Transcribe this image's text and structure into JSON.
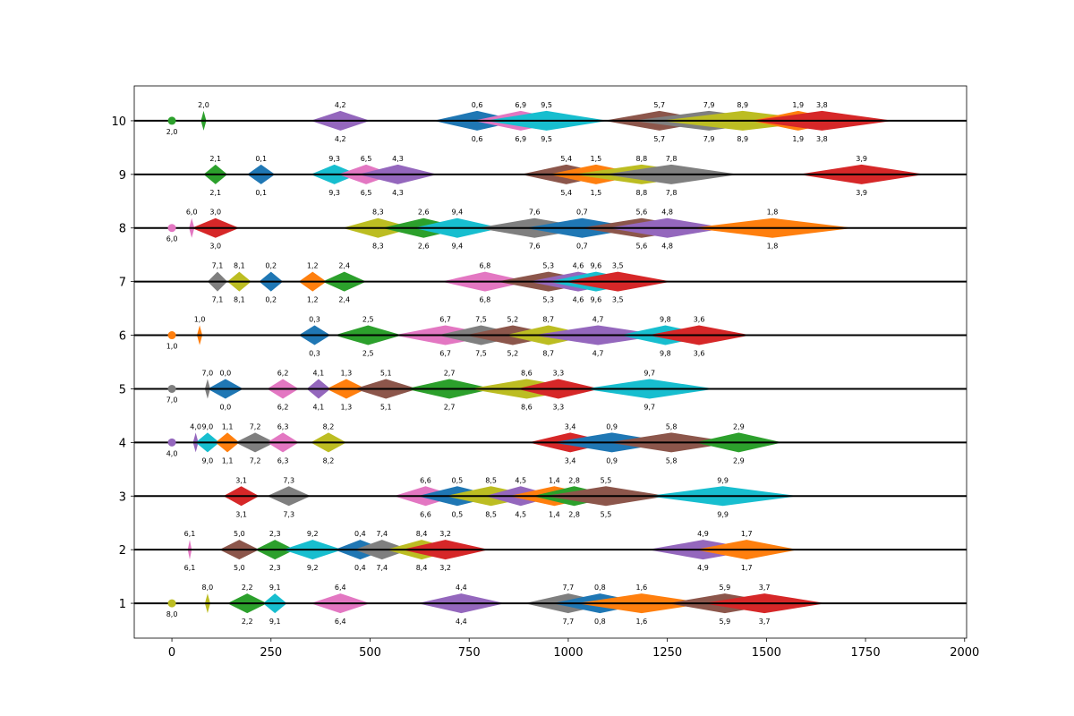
{
  "chart_data": {
    "type": "scatter",
    "title": "",
    "xlabel": "",
    "ylabel": "",
    "xlim": [
      -95,
      2005
    ],
    "ylim": [
      0.35,
      10.65
    ],
    "grid": false,
    "x_ticks": [
      0,
      250,
      500,
      750,
      1000,
      1250,
      1500,
      1750,
      2000
    ],
    "y_ticks": [
      1,
      2,
      3,
      4,
      5,
      6,
      7,
      8,
      9,
      10
    ],
    "x_tick_labels": [
      "0",
      "250",
      "500",
      "750",
      "1000",
      "1250",
      "1500",
      "1750",
      "2000"
    ],
    "y_tick_labels": [
      "1",
      "2",
      "3",
      "4",
      "5",
      "6",
      "7",
      "8",
      "9",
      "10"
    ],
    "palette": [
      "#1f77b4",
      "#ff7f0e",
      "#2ca02c",
      "#d62728",
      "#9467bd",
      "#8c564b",
      "#e377c2",
      "#7f7f7f",
      "#bcbd22",
      "#17becf"
    ],
    "lines": [
      {
        "y": 10,
        "origin": {
          "x": 0,
          "label": "2,0",
          "color": "#2ca02c"
        },
        "tasks": [
          {
            "label": "2,0",
            "start": 80,
            "end": 80,
            "color": "#2ca02c"
          },
          {
            "label": "4,2",
            "start": 350,
            "end": 500,
            "color": "#9467bd"
          },
          {
            "label": "0,6",
            "start": 660,
            "end": 880,
            "color": "#1f77b4"
          },
          {
            "label": "6,9",
            "start": 760,
            "end": 1000,
            "color": "#e377c2"
          },
          {
            "label": "9,5",
            "start": 790,
            "end": 1100,
            "color": "#17becf"
          },
          {
            "label": "5,7",
            "start": 1090,
            "end": 1370,
            "color": "#8c564b"
          },
          {
            "label": "7,9",
            "start": 1160,
            "end": 1550,
            "color": "#7f7f7f"
          },
          {
            "label": "8,9",
            "start": 1230,
            "end": 1650,
            "color": "#bcbd22"
          },
          {
            "label": "1,9",
            "start": 1460,
            "end": 1700,
            "color": "#ff7f0e"
          },
          {
            "label": "3,8",
            "start": 1460,
            "end": 1820,
            "color": "#d62728"
          }
        ]
      },
      {
        "y": 9,
        "tasks": [
          {
            "label": "2,1",
            "start": 80,
            "end": 140,
            "color": "#2ca02c"
          },
          {
            "label": "0,1",
            "start": 190,
            "end": 260,
            "color": "#1f77b4"
          },
          {
            "label": "9,3",
            "start": 350,
            "end": 470,
            "color": "#17becf"
          },
          {
            "label": "6,5",
            "start": 420,
            "end": 560,
            "color": "#e377c2"
          },
          {
            "label": "4,3",
            "start": 470,
            "end": 670,
            "color": "#9467bd"
          },
          {
            "label": "5,4",
            "start": 880,
            "end": 1110,
            "color": "#8c564b"
          },
          {
            "label": "1,5",
            "start": 950,
            "end": 1190,
            "color": "#ff7f0e"
          },
          {
            "label": "8,8",
            "start": 1010,
            "end": 1360,
            "color": "#bcbd22"
          },
          {
            "label": "7,8",
            "start": 1090,
            "end": 1430,
            "color": "#7f7f7f"
          },
          {
            "label": "3,9",
            "start": 1580,
            "end": 1900,
            "color": "#d62728"
          }
        ]
      },
      {
        "y": 8,
        "origin": {
          "x": 0,
          "label": "6,0",
          "color": "#e377c2"
        },
        "tasks": [
          {
            "label": "6,0",
            "start": 50,
            "end": 50,
            "color": "#e377c2"
          },
          {
            "label": "3,0",
            "start": 50,
            "end": 170,
            "color": "#d62728"
          },
          {
            "label": "8,3",
            "start": 430,
            "end": 610,
            "color": "#bcbd22"
          },
          {
            "label": "2,6",
            "start": 530,
            "end": 740,
            "color": "#2ca02c"
          },
          {
            "label": "9,4",
            "start": 610,
            "end": 830,
            "color": "#17becf"
          },
          {
            "label": "7,6",
            "start": 770,
            "end": 1060,
            "color": "#7f7f7f"
          },
          {
            "label": "0,7",
            "start": 890,
            "end": 1180,
            "color": "#1f77b4"
          },
          {
            "label": "5,6",
            "start": 1030,
            "end": 1340,
            "color": "#8c564b"
          },
          {
            "label": "4,8",
            "start": 1100,
            "end": 1400,
            "color": "#9467bd"
          },
          {
            "label": "1,8",
            "start": 1310,
            "end": 1720,
            "color": "#ff7f0e"
          }
        ]
      },
      {
        "y": 7,
        "tasks": [
          {
            "label": "7,1",
            "start": 90,
            "end": 140,
            "color": "#7f7f7f"
          },
          {
            "label": "8,1",
            "start": 140,
            "end": 200,
            "color": "#bcbd22"
          },
          {
            "label": "0,2",
            "start": 220,
            "end": 280,
            "color": "#1f77b4"
          },
          {
            "label": "1,2",
            "start": 320,
            "end": 390,
            "color": "#ff7f0e"
          },
          {
            "label": "2,4",
            "start": 380,
            "end": 490,
            "color": "#2ca02c"
          },
          {
            "label": "6,8",
            "start": 680,
            "end": 900,
            "color": "#e377c2"
          },
          {
            "label": "5,3",
            "start": 820,
            "end": 1080,
            "color": "#8c564b"
          },
          {
            "label": "4,6",
            "start": 900,
            "end": 1150,
            "color": "#9467bd"
          },
          {
            "label": "9,6",
            "start": 950,
            "end": 1190,
            "color": "#17becf"
          },
          {
            "label": "3,5",
            "start": 990,
            "end": 1260,
            "color": "#d62728"
          }
        ]
      },
      {
        "y": 6,
        "origin": {
          "x": 0,
          "label": "1,0",
          "color": "#ff7f0e"
        },
        "tasks": [
          {
            "label": "1,0",
            "start": 70,
            "end": 70,
            "color": "#ff7f0e"
          },
          {
            "label": "0,3",
            "start": 320,
            "end": 400,
            "color": "#1f77b4"
          },
          {
            "label": "2,5",
            "start": 410,
            "end": 580,
            "color": "#2ca02c"
          },
          {
            "label": "6,7",
            "start": 560,
            "end": 820,
            "color": "#e377c2"
          },
          {
            "label": "7,5",
            "start": 670,
            "end": 890,
            "color": "#7f7f7f"
          },
          {
            "label": "5,2",
            "start": 740,
            "end": 980,
            "color": "#8c564b"
          },
          {
            "label": "8,7",
            "start": 840,
            "end": 1060,
            "color": "#bcbd22"
          },
          {
            "label": "4,7",
            "start": 910,
            "end": 1240,
            "color": "#9467bd"
          },
          {
            "label": "9,8",
            "start": 1130,
            "end": 1360,
            "color": "#17becf"
          },
          {
            "label": "3,6",
            "start": 1200,
            "end": 1460,
            "color": "#d62728"
          }
        ]
      },
      {
        "y": 5,
        "origin": {
          "x": 0,
          "label": "7,0",
          "color": "#7f7f7f"
        },
        "tasks": [
          {
            "label": "7,0",
            "start": 90,
            "end": 90,
            "color": "#7f7f7f"
          },
          {
            "label": "0,0",
            "start": 90,
            "end": 180,
            "color": "#1f77b4"
          },
          {
            "label": "6,2",
            "start": 240,
            "end": 320,
            "color": "#e377c2"
          },
          {
            "label": "4,1",
            "start": 340,
            "end": 400,
            "color": "#9467bd"
          },
          {
            "label": "1,3",
            "start": 390,
            "end": 490,
            "color": "#ff7f0e"
          },
          {
            "label": "5,1",
            "start": 460,
            "end": 620,
            "color": "#8c564b"
          },
          {
            "label": "2,7",
            "start": 590,
            "end": 810,
            "color": "#2ca02c"
          },
          {
            "label": "8,6",
            "start": 750,
            "end": 1040,
            "color": "#bcbd22"
          },
          {
            "label": "3,3",
            "start": 870,
            "end": 1080,
            "color": "#d62728"
          },
          {
            "label": "9,7",
            "start": 1040,
            "end": 1370,
            "color": "#17becf"
          }
        ]
      },
      {
        "y": 4,
        "origin": {
          "x": 0,
          "label": "4,0",
          "color": "#9467bd"
        },
        "tasks": [
          {
            "label": "4,0",
            "start": 60,
            "end": 60,
            "color": "#9467bd"
          },
          {
            "label": "9,0",
            "start": 60,
            "end": 120,
            "color": "#17becf"
          },
          {
            "label": "1,1",
            "start": 110,
            "end": 170,
            "color": "#ff7f0e"
          },
          {
            "label": "7,2",
            "start": 160,
            "end": 260,
            "color": "#7f7f7f"
          },
          {
            "label": "6,3",
            "start": 240,
            "end": 320,
            "color": "#e377c2"
          },
          {
            "label": "8,2",
            "start": 350,
            "end": 440,
            "color": "#bcbd22"
          },
          {
            "label": "3,4",
            "start": 900,
            "end": 1110,
            "color": "#d62728"
          },
          {
            "label": "0,9",
            "start": 960,
            "end": 1260,
            "color": "#1f77b4"
          },
          {
            "label": "5,8",
            "start": 1100,
            "end": 1420,
            "color": "#8c564b"
          },
          {
            "label": "2,9",
            "start": 1320,
            "end": 1540,
            "color": "#2ca02c"
          }
        ]
      },
      {
        "y": 3,
        "tasks": [
          {
            "label": "3,1",
            "start": 130,
            "end": 220,
            "color": "#d62728"
          },
          {
            "label": "7,3",
            "start": 240,
            "end": 350,
            "color": "#7f7f7f"
          },
          {
            "label": "6,6",
            "start": 560,
            "end": 720,
            "color": "#e377c2"
          },
          {
            "label": "0,5",
            "start": 620,
            "end": 820,
            "color": "#1f77b4"
          },
          {
            "label": "8,5",
            "start": 690,
            "end": 920,
            "color": "#bcbd22"
          },
          {
            "label": "4,5",
            "start": 790,
            "end": 970,
            "color": "#9467bd"
          },
          {
            "label": "1,4",
            "start": 850,
            "end": 1080,
            "color": "#ff7f0e"
          },
          {
            "label": "2,8",
            "start": 910,
            "end": 1120,
            "color": "#2ca02c"
          },
          {
            "label": "5,5",
            "start": 940,
            "end": 1250,
            "color": "#8c564b"
          },
          {
            "label": "9,9",
            "start": 1200,
            "end": 1580,
            "color": "#17becf"
          }
        ]
      },
      {
        "y": 2,
        "tasks": [
          {
            "label": "6,1",
            "start": 40,
            "end": 50,
            "color": "#e377c2"
          },
          {
            "label": "5,0",
            "start": 120,
            "end": 220,
            "color": "#8c564b"
          },
          {
            "label": "2,3",
            "start": 210,
            "end": 310,
            "color": "#2ca02c"
          },
          {
            "label": "9,2",
            "start": 280,
            "end": 430,
            "color": "#17becf"
          },
          {
            "label": "0,4",
            "start": 410,
            "end": 540,
            "color": "#1f77b4"
          },
          {
            "label": "7,4",
            "start": 460,
            "end": 600,
            "color": "#7f7f7f"
          },
          {
            "label": "8,4",
            "start": 540,
            "end": 720,
            "color": "#bcbd22"
          },
          {
            "label": "3,2",
            "start": 580,
            "end": 800,
            "color": "#d62728"
          },
          {
            "label": "4,9",
            "start": 1200,
            "end": 1480,
            "color": "#9467bd"
          },
          {
            "label": "1,7",
            "start": 1320,
            "end": 1580,
            "color": "#ff7f0e"
          }
        ]
      },
      {
        "y": 1,
        "origin": {
          "x": 0,
          "label": "8,0",
          "color": "#bcbd22"
        },
        "tasks": [
          {
            "label": "8,0",
            "start": 90,
            "end": 90,
            "color": "#bcbd22"
          },
          {
            "label": "2,2",
            "start": 140,
            "end": 240,
            "color": "#2ca02c"
          },
          {
            "label": "9,1",
            "start": 230,
            "end": 290,
            "color": "#17becf"
          },
          {
            "label": "6,4",
            "start": 350,
            "end": 500,
            "color": "#e377c2"
          },
          {
            "label": "4,4",
            "start": 620,
            "end": 840,
            "color": "#9467bd"
          },
          {
            "label": "7,7",
            "start": 890,
            "end": 1110,
            "color": "#7f7f7f"
          },
          {
            "label": "0,8",
            "start": 960,
            "end": 1200,
            "color": "#1f77b4"
          },
          {
            "label": "1,6",
            "start": 1020,
            "end": 1350,
            "color": "#ff7f0e"
          },
          {
            "label": "5,9",
            "start": 1250,
            "end": 1540,
            "color": "#8c564b"
          },
          {
            "label": "3,7",
            "start": 1340,
            "end": 1650,
            "color": "#d62728"
          }
        ]
      }
    ]
  }
}
